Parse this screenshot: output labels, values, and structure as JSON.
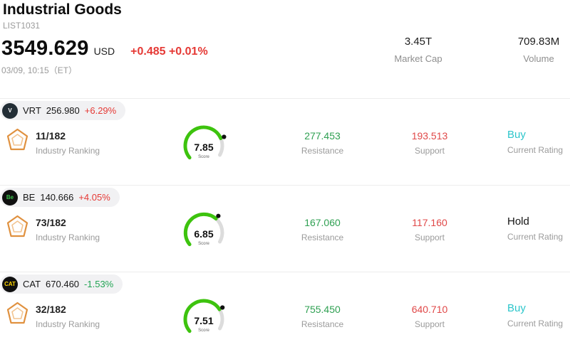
{
  "header": {
    "title": "Industrial Goods",
    "list_id": "LIST1031",
    "price": "3549.629",
    "currency": "USD",
    "change": "+0.485 +0.01%",
    "datetime": "03/09, 10:15（ET）",
    "stats": [
      {
        "value": "3.45T",
        "label": "Market Cap"
      },
      {
        "value": "709.83M",
        "label": "Volume"
      }
    ]
  },
  "colors": {
    "up": "#e53935",
    "down": "#21a453",
    "resistance": "#2fa052",
    "support": "#e04848",
    "gauge_green": "#3dc30e",
    "gauge_track": "#dcdcdc",
    "accent_orange": "#e0913f"
  },
  "stocks": [
    {
      "ticker": "VRT",
      "price": "256.980",
      "change": "+6.29%",
      "change_color": "#e53935",
      "logo_text": "V",
      "logo_bg": "#232e36",
      "logo_color": "#ffffff",
      "ranking": "11/182",
      "ranking_label": "Industry Ranking",
      "score": "7.85",
      "score_label": "Score",
      "resistance": "277.453",
      "resistance_label": "Resistance",
      "support": "193.513",
      "support_label": "Support",
      "rating": "Buy",
      "rating_color": "#2dc6cb",
      "rating_label": "Current Rating"
    },
    {
      "ticker": "BE",
      "price": "140.666",
      "change": "+4.05%",
      "change_color": "#e53935",
      "logo_text": "Be",
      "logo_bg": "#101010",
      "logo_color": "#3ac24a",
      "ranking": "73/182",
      "ranking_label": "Industry Ranking",
      "score": "6.85",
      "score_label": "Score",
      "resistance": "167.060",
      "resistance_label": "Resistance",
      "support": "117.160",
      "support_label": "Support",
      "rating": "Hold",
      "rating_color": "#131313",
      "rating_label": "Current Rating"
    },
    {
      "ticker": "CAT",
      "price": "670.460",
      "change": "-1.53%",
      "change_color": "#21a453",
      "logo_text": "CAT",
      "logo_bg": "#101010",
      "logo_color": "#ffd400",
      "ranking": "32/182",
      "ranking_label": "Industry Ranking",
      "score": "7.51",
      "score_label": "Score",
      "resistance": "755.450",
      "resistance_label": "Resistance",
      "support": "640.710",
      "support_label": "Support",
      "rating": "Buy",
      "rating_color": "#2dc6cb",
      "rating_label": "Current Rating"
    }
  ]
}
